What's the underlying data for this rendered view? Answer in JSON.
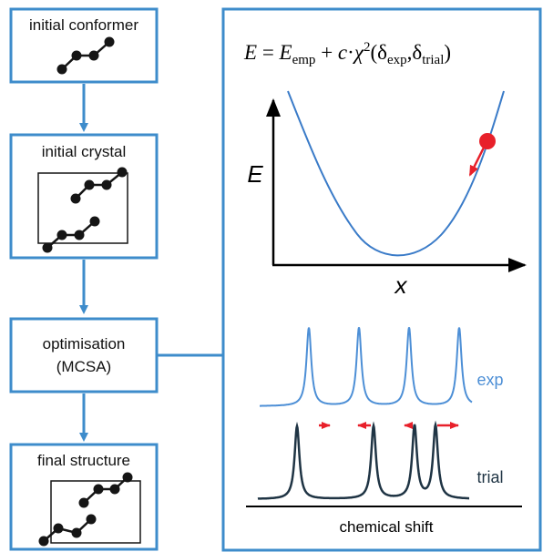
{
  "colors": {
    "box": "#3e8ccb",
    "curve": "#3a7bc8",
    "exp": "#4d8fd6",
    "trial": "#1f3444",
    "marker": "#e8202a",
    "node": "#151515"
  },
  "flow": {
    "steps": [
      {
        "label": "initial conformer"
      },
      {
        "label": "initial crystal"
      },
      {
        "label": "optimisation",
        "label2": "(MCSA)"
      },
      {
        "label": "final structure"
      }
    ]
  },
  "equation": {
    "lhs": "E",
    "eq": " = ",
    "e": "E",
    "emp": "emp",
    "plus": " + ",
    "c": "c",
    "dot": "·",
    "chi": "χ",
    "sq": "2",
    "open": "(",
    "d1": "δ",
    "exp": "exp",
    "comma": ",",
    "d2": "δ",
    "trial": "trial",
    "close": ")"
  },
  "energy_plot": {
    "y_label": "E",
    "x_label": "x"
  },
  "spectra": {
    "exp_label": "exp",
    "trial_label": "trial",
    "axis_label": "chemical shift"
  }
}
